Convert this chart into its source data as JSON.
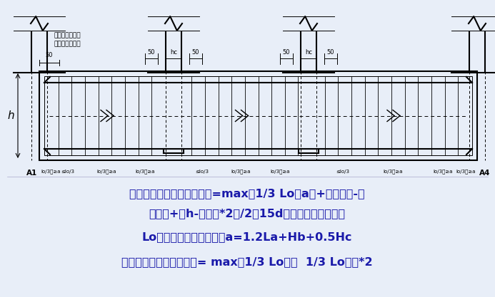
{
  "bg_color": "#e8eef8",
  "line_color": "#000000",
  "text_color": "#1a1aaa",
  "fig_w": 6.93,
  "fig_h": 4.17,
  "dpi": 100,
  "text_line1": "下部非贯通筋长度（边跨）=max（1/3 Lo，a）+（左支座-保",
  "text_line2": "护层）+（h-保护层*2）/2或15d（上部无连接时候）",
  "text_line3": "Lo取柱相邻两跨较大值。a=1.2La+Hb+0.5Hc",
  "text_line4": "下部非贯通筋（中间跨）= max（1/3 Lo左，  1/3 Lo右）*2",
  "col_label_line1": "柱或墙（外侧与",
  "col_label_line2": "基础梁端一平）",
  "label_h": "h",
  "label_a1": "A1",
  "label_a4": "A4",
  "dim_50": "50",
  "dim_hc": "hc"
}
